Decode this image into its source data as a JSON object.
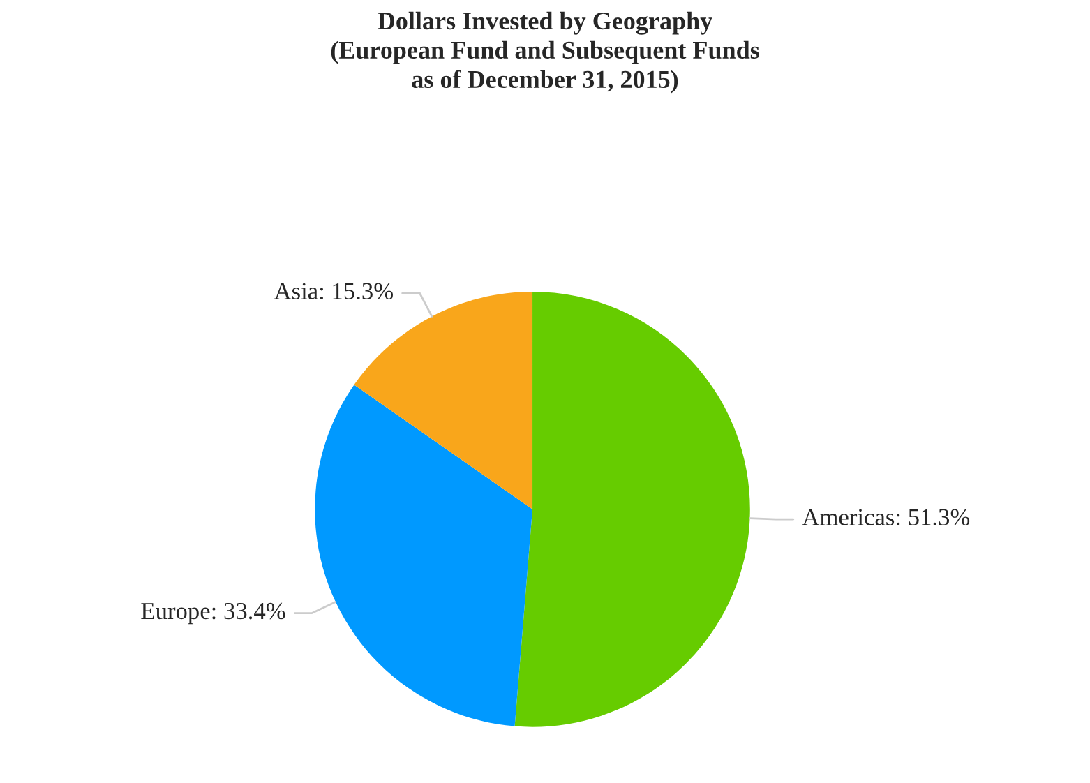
{
  "chart_data": {
    "type": "pie",
    "title": "Dollars Invested by Geography\n(European Fund and Subsequent Funds\nas of December 31, 2015)",
    "categories": [
      "Americas",
      "Europe",
      "Asia"
    ],
    "values": [
      51.3,
      33.4,
      15.3
    ],
    "value_labels": [
      "51.3%",
      "33.4%",
      "15.3%"
    ],
    "colors": [
      "#66cc00",
      "#0099ff",
      "#f9a61b"
    ],
    "legend": false
  }
}
